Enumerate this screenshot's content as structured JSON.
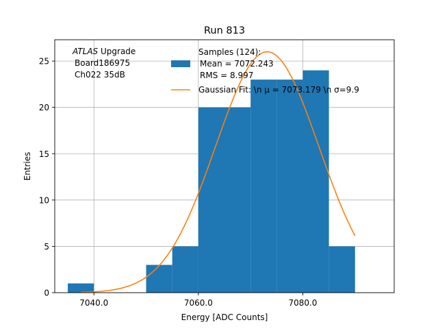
{
  "chart_data": {
    "type": "bar",
    "title": "Run 813",
    "xlabel": "Energy [ADC Counts]",
    "ylabel": "Entries",
    "xlim": [
      7032.5,
      7097.5
    ],
    "ylim": [
      0,
      27.3
    ],
    "xticks": [
      7040,
      7060,
      7080
    ],
    "xtick_labels": [
      "7040.0",
      "7060.0",
      "7080.0"
    ],
    "yticks": [
      0,
      5,
      10,
      15,
      20,
      25
    ],
    "ytick_labels": [
      "0",
      "5",
      "10",
      "15",
      "20",
      "25"
    ],
    "grid": true,
    "histogram": {
      "name": "Samples (124):",
      "bins": [
        {
          "x0": 7035,
          "x1": 7040,
          "value": 1
        },
        {
          "x0": 7040,
          "x1": 7045,
          "value": 0
        },
        {
          "x0": 7045,
          "x1": 7050,
          "value": 0
        },
        {
          "x0": 7050,
          "x1": 7055,
          "value": 3
        },
        {
          "x0": 7055,
          "x1": 7060,
          "value": 5
        },
        {
          "x0": 7060,
          "x1": 7065,
          "value": 20
        },
        {
          "x0": 7065,
          "x1": 7070,
          "value": 20
        },
        {
          "x0": 7070,
          "x1": 7075,
          "value": 23
        },
        {
          "x0": 7075,
          "x1": 7080,
          "value": 23
        },
        {
          "x0": 7080,
          "x1": 7085,
          "value": 24
        },
        {
          "x0": 7085,
          "x1": 7090,
          "value": 5
        }
      ],
      "color": "#1f77b4"
    },
    "fit": {
      "name": "Gaussian Fit",
      "mu": 7073.179,
      "sigma": 9.9,
      "amplitude": 26.0,
      "x_range": [
        7037.5,
        7090
      ],
      "color": "#ff7f0e"
    },
    "legend": {
      "position": "top-right",
      "entries": [
        {
          "lines": [
            "Samples (124):",
            "Mean = 7072.243",
            "RMS = 8.997"
          ]
        },
        {
          "lines": [
            "Gaussian Fit: \\n μ = 7073.179 \\n σ=9.9"
          ]
        }
      ]
    },
    "annotation": {
      "italic": "ATLAS",
      "line1_rest": " Upgrade",
      "line2": "Board186975",
      "line3": "Ch022 35dB"
    }
  }
}
